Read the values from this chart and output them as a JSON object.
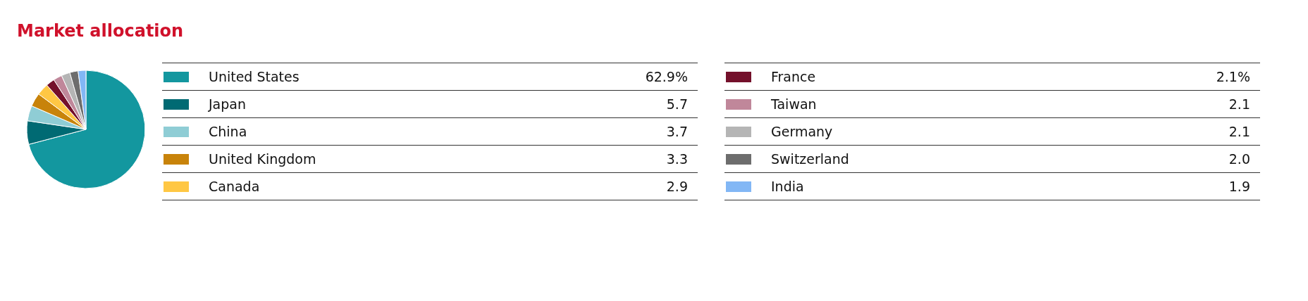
{
  "chart_data": {
    "type": "pie",
    "title": "Market allocation",
    "legend": "right",
    "categories": [
      "United States",
      "Japan",
      "China",
      "United Kingdom",
      "Canada",
      "France",
      "Taiwan",
      "Germany",
      "Switzerland",
      "India"
    ],
    "values": [
      62.9,
      5.7,
      3.7,
      3.3,
      2.9,
      2.1,
      2.1,
      2.1,
      2.0,
      1.9
    ],
    "value_labels": [
      "62.9%",
      "5.7",
      "3.7",
      "3.3",
      "2.9",
      "2.1%",
      "2.1",
      "2.1",
      "2.0",
      "1.9"
    ],
    "colors": [
      "#13979f",
      "#006a73",
      "#8fcdd5",
      "#c8830a",
      "#ffc744",
      "#74102b",
      "#c0879a",
      "#b5b5b5",
      "#6d6d6d",
      "#82b7f5"
    ]
  }
}
